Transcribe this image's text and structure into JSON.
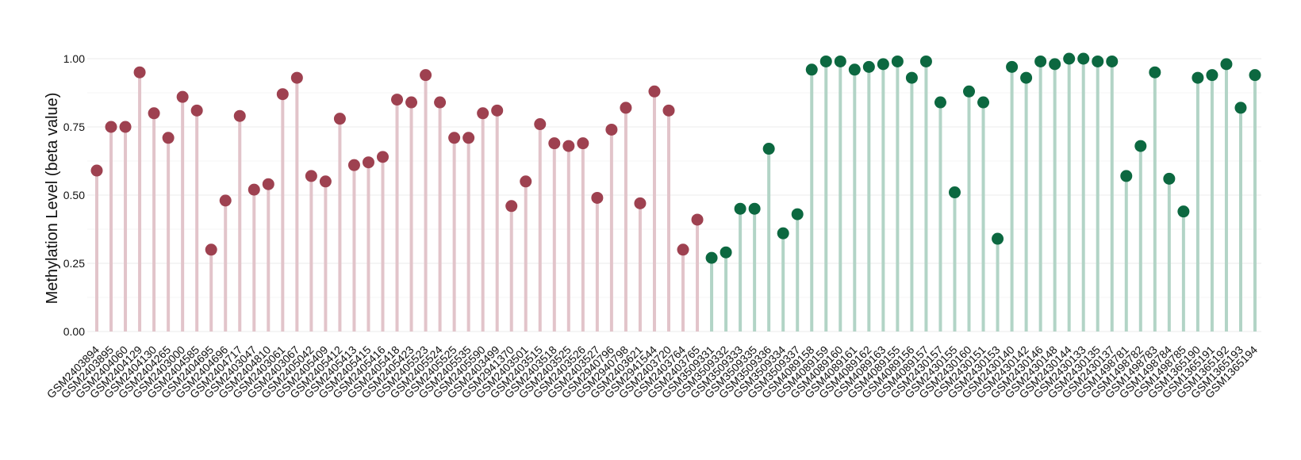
{
  "chart_data": {
    "type": "lollipop",
    "ylabel": "Methylation Level (beta value)",
    "xlabel": "",
    "ylim": [
      0,
      1
    ],
    "yticks": [
      "0.00",
      "0.25",
      "0.50",
      "0.75",
      "1.00"
    ],
    "ytick_values": [
      0,
      0.25,
      0.5,
      0.75,
      1.0
    ],
    "grid": true,
    "legend": "none",
    "groups": [
      {
        "color": "#9e4150",
        "stem_color": "#e2c4ca"
      },
      {
        "color": "#0c6840",
        "stem_color": "#b2d4c6"
      }
    ],
    "categories": [
      "GSM2403894",
      "GSM2403895",
      "GSM2404060",
      "GSM2404129",
      "GSM2404130",
      "GSM2404265",
      "GSM2403000",
      "GSM2404585",
      "GSM2404695",
      "GSM2404696",
      "GSM2404717",
      "GSM2403047",
      "GSM2404810",
      "GSM2403061",
      "GSM2403067",
      "GSM2405042",
      "GSM2405409",
      "GSM2405412",
      "GSM2405413",
      "GSM2405415",
      "GSM2405416",
      "GSM2405418",
      "GSM2405423",
      "GSM2405523",
      "GSM2405524",
      "GSM2405525",
      "GSM2405535",
      "GSM2405590",
      "GSM2403499",
      "GSM2941370",
      "GSM2403501",
      "GSM2403515",
      "GSM2403518",
      "GSM2403525",
      "GSM2403526",
      "GSM2403527",
      "GSM2940796",
      "GSM2940798",
      "GSM2403621",
      "GSM2941544",
      "GSM2403720",
      "GSM2403764",
      "GSM2403765",
      "GSM3509331",
      "GSM3509332",
      "GSM3509333",
      "GSM3509335",
      "GSM3509336",
      "GSM3509334",
      "GSM3509337",
      "GSM4089158",
      "GSM4089159",
      "GSM4089160",
      "GSM4089161",
      "GSM4089162",
      "GSM4089163",
      "GSM4089155",
      "GSM4089156",
      "GSM4089157",
      "GSM2430157",
      "GSM2430155",
      "GSM2430160",
      "GSM2430151",
      "GSM2430153",
      "GSM2430140",
      "GSM2430142",
      "GSM2430146",
      "GSM2430148",
      "GSM2430144",
      "GSM2430133",
      "GSM2430135",
      "GSM2430137",
      "GSM1498781",
      "GSM1498782",
      "GSM1498783",
      "GSM1498784",
      "GSM1498785",
      "GSM1365190",
      "GSM1365191",
      "GSM1365192",
      "GSM1365193",
      "GSM1365194"
    ],
    "values": [
      0.59,
      0.75,
      0.75,
      0.95,
      0.8,
      0.71,
      0.86,
      0.81,
      0.3,
      0.48,
      0.79,
      0.52,
      0.54,
      0.87,
      0.93,
      0.57,
      0.55,
      0.78,
      0.61,
      0.62,
      0.64,
      0.85,
      0.84,
      0.94,
      0.84,
      0.71,
      0.71,
      0.8,
      0.81,
      0.46,
      0.55,
      0.76,
      0.69,
      0.68,
      0.69,
      0.49,
      0.74,
      0.82,
      0.47,
      0.88,
      0.81,
      0.3,
      0.41,
      0.27,
      0.29,
      0.45,
      0.45,
      0.67,
      0.36,
      0.43,
      0.96,
      0.99,
      0.99,
      0.96,
      0.97,
      0.98,
      0.99,
      0.93,
      0.99,
      0.84,
      0.51,
      0.88,
      0.84,
      0.34,
      0.97,
      0.93,
      0.99,
      0.98,
      1.0,
      1.0,
      0.99,
      0.99,
      0.57,
      0.68,
      0.95,
      0.56,
      0.44,
      0.93,
      0.94,
      0.98,
      0.82,
      0.94
    ],
    "group_index": [
      0,
      0,
      0,
      0,
      0,
      0,
      0,
      0,
      0,
      0,
      0,
      0,
      0,
      0,
      0,
      0,
      0,
      0,
      0,
      0,
      0,
      0,
      0,
      0,
      0,
      0,
      0,
      0,
      0,
      0,
      0,
      0,
      0,
      0,
      0,
      0,
      0,
      0,
      0,
      0,
      0,
      0,
      0,
      1,
      1,
      1,
      1,
      1,
      1,
      1,
      1,
      1,
      1,
      1,
      1,
      1,
      1,
      1,
      1,
      1,
      1,
      1,
      1,
      1,
      1,
      1,
      1,
      1,
      1,
      1,
      1,
      1,
      1,
      1,
      1,
      1,
      1,
      1,
      1,
      1,
      1,
      1
    ]
  }
}
